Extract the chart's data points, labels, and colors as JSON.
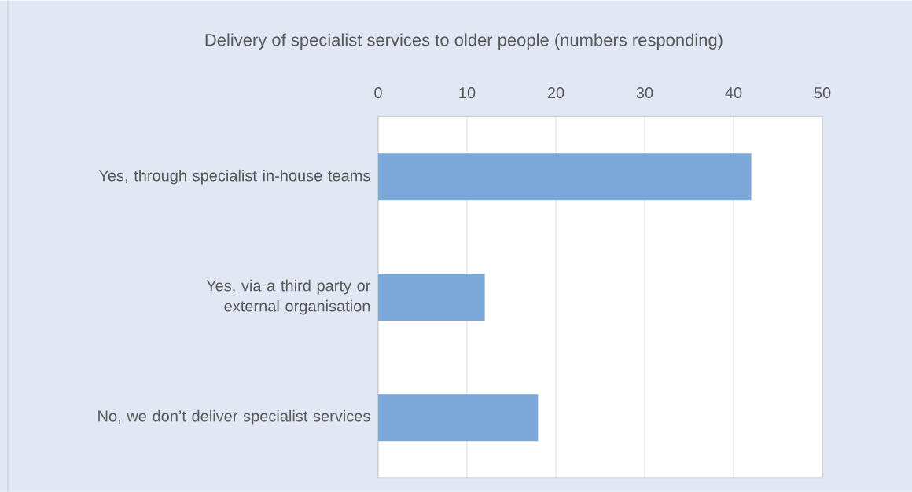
{
  "chart_data": {
    "type": "bar",
    "orientation": "horizontal",
    "title": "Delivery of specialist services to older people (numbers responding)",
    "categories": [
      "Yes, through specialist in-house teams",
      "Yes, via a third party or external organisation",
      "No, we don’t deliver specialist services"
    ],
    "values": [
      42,
      12,
      18
    ],
    "color": "#7ba7d9",
    "xlim": [
      0,
      50
    ],
    "xticks": [
      0,
      10,
      20,
      30,
      40,
      50
    ],
    "grid": "x"
  }
}
